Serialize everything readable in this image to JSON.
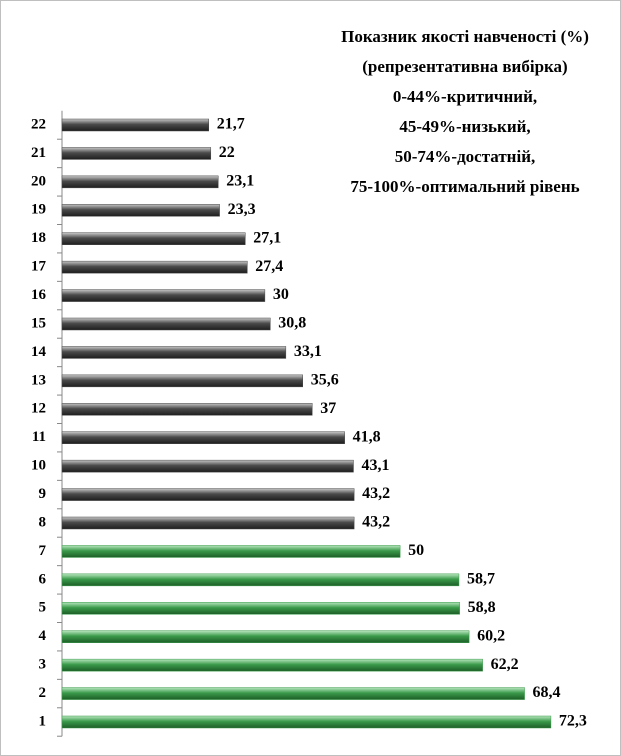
{
  "chart_data": {
    "type": "barh",
    "title": [
      "Показник якості навченості (%)",
      "(репрезентативна вибірка)",
      "0-44%-критичний,",
      "45-49%-низький,",
      "50-74%-достатній,",
      "75-100%-оптимальний рівень"
    ],
    "categories": [
      "1",
      "2",
      "3",
      "4",
      "5",
      "6",
      "7",
      "8",
      "9",
      "10",
      "11",
      "12",
      "13",
      "14",
      "15",
      "16",
      "17",
      "18",
      "19",
      "20",
      "21",
      "22"
    ],
    "values": [
      72.3,
      68.4,
      62.2,
      60.2,
      58.8,
      58.7,
      50,
      43.2,
      43.2,
      43.1,
      41.8,
      37,
      35.6,
      33.1,
      30.8,
      30,
      27.4,
      27.1,
      23.3,
      23.1,
      22,
      21.7
    ],
    "value_labels": [
      "72,3",
      "68,4",
      "62,2",
      "60,2",
      "58,8",
      "58,7",
      "50",
      "43,2",
      "43,2",
      "43,1",
      "41,8",
      "37",
      "35,6",
      "33,1",
      "30,8",
      "30",
      "27,4",
      "27,1",
      "23,3",
      "23,1",
      "22",
      "21,7"
    ],
    "colors": [
      "#3a9a4a",
      "#3a9a4a",
      "#3a9a4a",
      "#3a9a4a",
      "#3a9a4a",
      "#3a9a4a",
      "#3a9a4a",
      "#4a4a4a",
      "#4a4a4a",
      "#4a4a4a",
      "#4a4a4a",
      "#4a4a4a",
      "#4a4a4a",
      "#4a4a4a",
      "#4a4a4a",
      "#4a4a4a",
      "#4a4a4a",
      "#4a4a4a",
      "#4a4a4a",
      "#4a4a4a",
      "#4a4a4a",
      "#4a4a4a"
    ],
    "xlim": [
      0,
      80
    ]
  }
}
